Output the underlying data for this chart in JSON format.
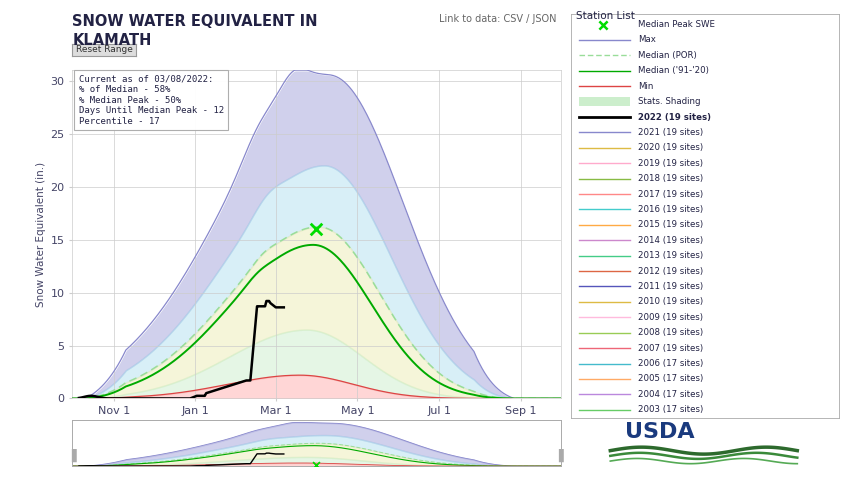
{
  "title": "SNOW WATER EQUIVALENT IN\nKLAMATH",
  "ylabel": "Snow Water Equivalent (in.)",
  "ylim": [
    0,
    31
  ],
  "yticks": [
    0,
    5,
    10,
    15,
    20,
    25,
    30
  ],
  "x_labels": [
    "Nov 1",
    "Jan 1",
    "Mar 1",
    "May 1",
    "Jul 1",
    "Sep 1"
  ],
  "x_tick_days": [
    31,
    92,
    152,
    213,
    274,
    335
  ],
  "annotation_text": "Current as of 03/08/2022:\n% of Median - 58%\n% Median Peak - 50%\nDays Until Median Peak - 12\nPercentile - 17",
  "median_peak_day": 182,
  "median_peak_val": 16.0,
  "link_text": "Link to data: CSV / JSON",
  "station_list_title": "Station List",
  "bg_color": "#ffffff",
  "legend_items": [
    {
      "label": "Median Peak SWE",
      "color": "#00dd00",
      "marker": "x",
      "linestyle": "none",
      "bold": false
    },
    {
      "label": "Max",
      "color": "#8888cc",
      "linestyle": "-",
      "bold": false
    },
    {
      "label": "Median (POR)",
      "color": "#99dd99",
      "linestyle": "--",
      "bold": false
    },
    {
      "label": "Median ('91-'20)",
      "color": "#00aa00",
      "linestyle": "-",
      "bold": false
    },
    {
      "label": "Min",
      "color": "#dd4444",
      "linestyle": "-",
      "bold": false
    },
    {
      "label": "Stats. Shading",
      "color": "#bbffbb",
      "linestyle": "-",
      "bold": false
    },
    {
      "label": "2022 (19 sites)",
      "color": "#000000",
      "linestyle": "-",
      "bold": true
    },
    {
      "label": "2021 (19 sites)",
      "color": "#8888cc",
      "linestyle": "-",
      "bold": false
    },
    {
      "label": "2020 (19 sites)",
      "color": "#ddbb44",
      "linestyle": "-",
      "bold": false
    },
    {
      "label": "2019 (19 sites)",
      "color": "#ffaacc",
      "linestyle": "-",
      "bold": false
    },
    {
      "label": "2018 (19 sites)",
      "color": "#88bb44",
      "linestyle": "-",
      "bold": false
    },
    {
      "label": "2017 (19 sites)",
      "color": "#ff8888",
      "linestyle": "-",
      "bold": false
    },
    {
      "label": "2016 (19 sites)",
      "color": "#44cccc",
      "linestyle": "-",
      "bold": false
    },
    {
      "label": "2015 (19 sites)",
      "color": "#ffaa44",
      "linestyle": "-",
      "bold": false
    },
    {
      "label": "2014 (19 sites)",
      "color": "#cc88cc",
      "linestyle": "-",
      "bold": false
    },
    {
      "label": "2013 (19 sites)",
      "color": "#44cc88",
      "linestyle": "-",
      "bold": false
    },
    {
      "label": "2012 (19 sites)",
      "color": "#dd6644",
      "linestyle": "-",
      "bold": false
    },
    {
      "label": "2011 (19 sites)",
      "color": "#5555bb",
      "linestyle": "-",
      "bold": false
    },
    {
      "label": "2010 (19 sites)",
      "color": "#ddbb44",
      "linestyle": "-",
      "bold": false
    },
    {
      "label": "2009 (19 sites)",
      "color": "#ffbbdd",
      "linestyle": "-",
      "bold": false
    },
    {
      "label": "2008 (19 sites)",
      "color": "#99cc55",
      "linestyle": "-",
      "bold": false
    },
    {
      "label": "2007 (19 sites)",
      "color": "#ee6677",
      "linestyle": "-",
      "bold": false
    },
    {
      "label": "2006 (17 sites)",
      "color": "#44bbcc",
      "linestyle": "-",
      "bold": false
    },
    {
      "label": "2005 (17 sites)",
      "color": "#ffaa66",
      "linestyle": "-",
      "bold": false
    },
    {
      "label": "2004 (17 sites)",
      "color": "#bb88dd",
      "linestyle": "-",
      "bold": false
    },
    {
      "label": "2003 (17 sites)",
      "color": "#66cc66",
      "linestyle": "-",
      "bold": false
    }
  ]
}
